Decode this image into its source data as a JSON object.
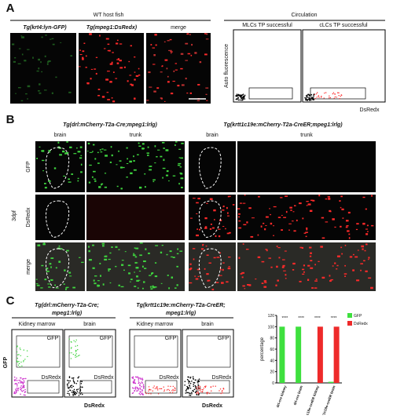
{
  "panel_a": {
    "label": "A",
    "group1": "WT host fish",
    "images": [
      "Tg(krt4:lyn-GFP)",
      "Tg(mpeg1:DsRedx)",
      "merge"
    ],
    "group2": "Circulation",
    "plots": [
      "MLCs TP successful",
      "cLCs TP successful"
    ],
    "ylabel": "Auto fluorescence",
    "xlabel": "DsRedx"
  },
  "panel_b": {
    "label": "B",
    "columns": [
      "Tg(drl:mCherry-T2a-Cre;mpeg1:lrlg)",
      "Tg(krtt1c19e:mCherry-T2a-CreER;mpeg1:lrlg)"
    ],
    "subcolumns": [
      "brain",
      "trunk",
      "brain",
      "trunk"
    ],
    "rows": [
      "GFP",
      "DsRedx",
      "merge"
    ],
    "stage": "3dpf"
  },
  "panel_c": {
    "label": "C",
    "groups": [
      {
        "title": [
          "Tg(drl:mCherry-T2a-Cre;",
          "mpeg1:lrlg)"
        ],
        "plots": [
          {
            "title": "Kidney marrow",
            "gates": [
              "GFP",
              "DsRedx"
            ]
          },
          {
            "title": "brain",
            "gates": [
              "GFP",
              "DsRedx"
            ]
          }
        ],
        "xlabel": "DsRedx"
      },
      {
        "title": [
          "Tg(krtt1c19e:mCherry-T2a-CreER;",
          "mpeg1:lrlg)"
        ],
        "plots": [
          {
            "title": "Kidney marrow",
            "gates": [
              "GFP",
              "DsRedx"
            ]
          },
          {
            "title": "brain",
            "gates": [
              "GFP",
              "DsRedx"
            ]
          }
        ],
        "xlabel": "DsRedx"
      }
    ],
    "ylabel": "GFP"
  },
  "chart_data": {
    "type": "bar",
    "ylabel": "percentage",
    "categories": [
      "drl-cre kidney",
      "drl-cre brain",
      "krtt1c19e-creER kidney",
      "krtt1c19e-creER brain"
    ],
    "series": [
      {
        "name": "GFP",
        "color": "#3ee03e",
        "values": [
          100,
          100,
          0,
          2
        ]
      },
      {
        "name": "DsRedx",
        "color": "#ee2a2a",
        "values": [
          0,
          0,
          100,
          100
        ]
      }
    ],
    "ylim": [
      0,
      120
    ],
    "yticks": [
      0,
      20,
      40,
      60,
      80,
      100,
      120
    ],
    "annotations": [
      "****",
      "****",
      "****",
      "****"
    ]
  }
}
